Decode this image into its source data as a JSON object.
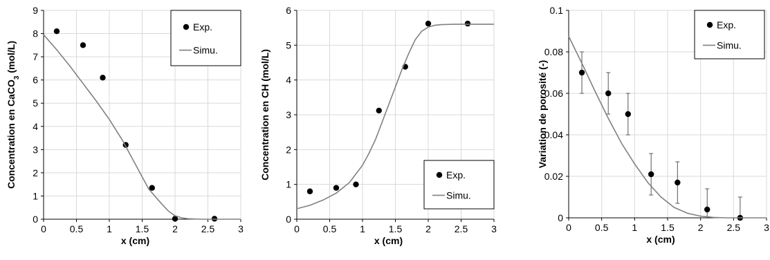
{
  "chart_data": [
    {
      "type": "scatter",
      "xlabel": "x (cm)",
      "ylabel": "Concentration en CaCO3 (mol/L)",
      "ylabel_parts": [
        "Concentration en CaCO",
        "3",
        " (mol/L)"
      ],
      "xlim": [
        0,
        3
      ],
      "ylim": [
        0,
        9
      ],
      "xticks": [
        0,
        0.5,
        1,
        1.5,
        2,
        2.5,
        3
      ],
      "xtick_labels": [
        "0",
        "0.5",
        "1",
        "1.5",
        "2",
        "2.5",
        "3"
      ],
      "yticks": [
        0,
        1,
        2,
        3,
        4,
        5,
        6,
        7,
        8,
        9
      ],
      "ytick_labels": [
        "0",
        "1",
        "2",
        "3",
        "4",
        "5",
        "6",
        "7",
        "8",
        "9"
      ],
      "grid": true,
      "legend_position": "top-right",
      "series": [
        {
          "name": "Exp.",
          "kind": "points",
          "color": "#000000",
          "x": [
            0.2,
            0.6,
            0.9,
            1.25,
            1.65,
            2.0,
            2.6
          ],
          "y": [
            8.1,
            7.5,
            6.1,
            3.2,
            1.35,
            0.02,
            0.02
          ]
        },
        {
          "name": "Simu.",
          "kind": "line",
          "color": "#808080",
          "x": [
            0,
            0.2,
            0.4,
            0.6,
            0.8,
            1.0,
            1.2,
            1.4,
            1.6,
            1.8,
            1.9,
            2.0,
            2.1,
            2.2,
            2.4,
            2.6,
            3.0
          ],
          "y": [
            7.95,
            7.3,
            6.6,
            5.85,
            5.1,
            4.3,
            3.4,
            2.35,
            1.3,
            0.65,
            0.35,
            0.15,
            0.06,
            0.02,
            0,
            0,
            0
          ]
        }
      ]
    },
    {
      "type": "scatter",
      "xlabel": "x (cm)",
      "ylabel": "Concentration en CH (mol/L)",
      "xlim": [
        0,
        3
      ],
      "ylim": [
        0,
        6
      ],
      "xticks": [
        0,
        0.5,
        1,
        1.5,
        2,
        2.5,
        3
      ],
      "xtick_labels": [
        "0",
        "0.5",
        "1",
        "1.5",
        "2",
        "2.5",
        "3"
      ],
      "yticks": [
        0,
        1,
        2,
        3,
        4,
        5,
        6
      ],
      "ytick_labels": [
        "0",
        "1",
        "2",
        "3",
        "4",
        "5",
        "6"
      ],
      "grid": true,
      "legend_position": "bottom-right",
      "series": [
        {
          "name": "Exp.",
          "kind": "points",
          "color": "#000000",
          "x": [
            0.2,
            0.6,
            0.9,
            1.25,
            1.65,
            2.0,
            2.6
          ],
          "y": [
            0.8,
            0.9,
            1.0,
            3.12,
            4.38,
            5.62,
            5.62
          ]
        },
        {
          "name": "Simu.",
          "kind": "line",
          "color": "#808080",
          "x": [
            0,
            0.2,
            0.4,
            0.6,
            0.8,
            1.0,
            1.1,
            1.2,
            1.3,
            1.4,
            1.5,
            1.6,
            1.7,
            1.8,
            1.9,
            2.0,
            2.1,
            2.2,
            2.4,
            2.6,
            3.0
          ],
          "y": [
            0.3,
            0.4,
            0.55,
            0.75,
            1.05,
            1.55,
            1.9,
            2.3,
            2.8,
            3.3,
            3.8,
            4.3,
            4.75,
            5.15,
            5.4,
            5.52,
            5.57,
            5.59,
            5.6,
            5.6,
            5.6
          ]
        }
      ]
    },
    {
      "type": "scatter",
      "xlabel": "x (cm)",
      "ylabel": "Variation de porosité (-)",
      "xlim": [
        0,
        3
      ],
      "ylim": [
        0,
        0.1
      ],
      "xticks": [
        0,
        0.5,
        1,
        1.5,
        2,
        2.5,
        3
      ],
      "xtick_labels": [
        "0",
        "0.5",
        "1",
        "1.5",
        "2",
        "2.5",
        "3"
      ],
      "yticks": [
        0,
        0.02,
        0.04,
        0.06,
        0.08,
        0.1
      ],
      "ytick_labels": [
        "0",
        "0.02",
        "0.04",
        "0.06",
        "0.08",
        "0.1"
      ],
      "grid": true,
      "legend_position": "top-right",
      "series": [
        {
          "name": "Exp.",
          "kind": "points",
          "color": "#000000",
          "x": [
            0.2,
            0.6,
            0.9,
            1.25,
            1.65,
            2.1,
            2.6
          ],
          "y": [
            0.07,
            0.06,
            0.05,
            0.021,
            0.017,
            0.004,
            0.0
          ],
          "yerr": [
            0.01,
            0.01,
            0.01,
            0.01,
            0.01,
            0.01,
            0.01
          ]
        },
        {
          "name": "Simu.",
          "kind": "line",
          "color": "#808080",
          "x": [
            0,
            0.1,
            0.2,
            0.4,
            0.6,
            0.8,
            1.0,
            1.2,
            1.4,
            1.6,
            1.8,
            2.0,
            2.2,
            2.4,
            2.6,
            3.0
          ],
          "y": [
            0.0875,
            0.081,
            0.0745,
            0.061,
            0.048,
            0.036,
            0.026,
            0.017,
            0.01,
            0.005,
            0.0022,
            0.0008,
            0.0002,
            0,
            0,
            0
          ]
        }
      ]
    }
  ]
}
